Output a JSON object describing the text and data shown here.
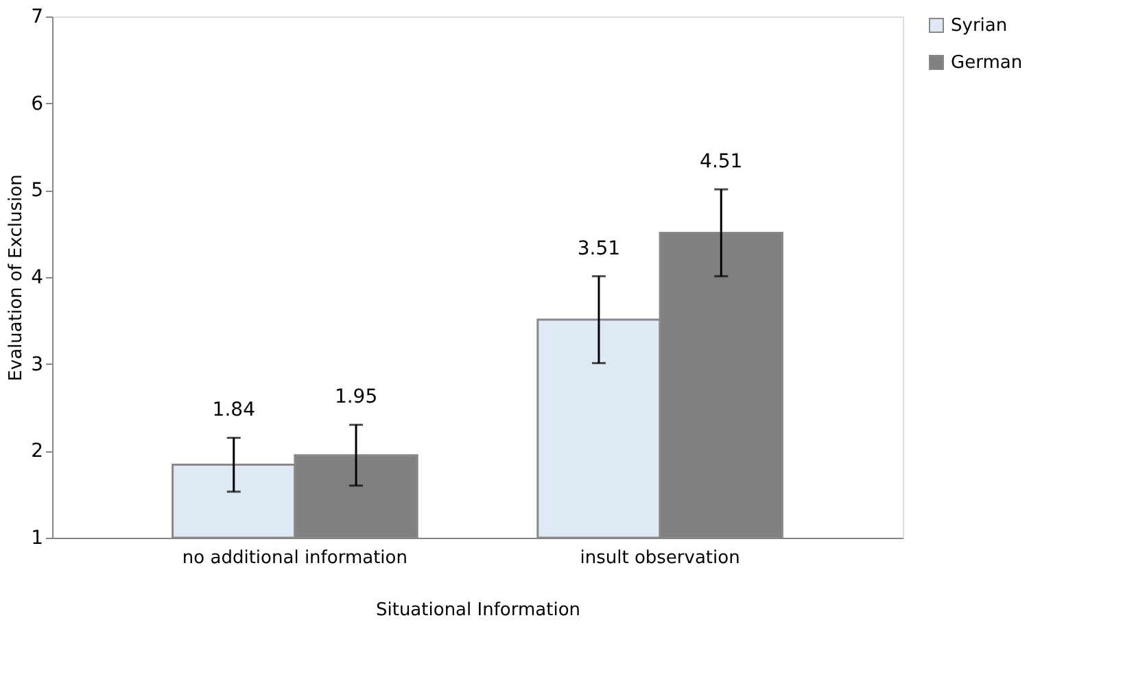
{
  "chart_data": {
    "type": "bar",
    "xlabel": "Situational Information",
    "ylabel": "Evaluation of Exclusion",
    "categories": [
      "no additional information",
      "insult observation"
    ],
    "series": [
      {
        "name": "Syrian",
        "color": "#dfe8f5",
        "values": [
          1.84,
          3.51
        ],
        "errors": [
          0.31,
          0.5
        ]
      },
      {
        "name": "German",
        "color": "#808080",
        "values": [
          1.95,
          4.51
        ],
        "errors": [
          0.35,
          0.5
        ]
      }
    ],
    "ylim": [
      1,
      7
    ],
    "yticks": [
      1,
      2,
      3,
      4,
      5,
      6,
      7
    ],
    "grid": false,
    "legend": "right",
    "data_labels": true
  }
}
